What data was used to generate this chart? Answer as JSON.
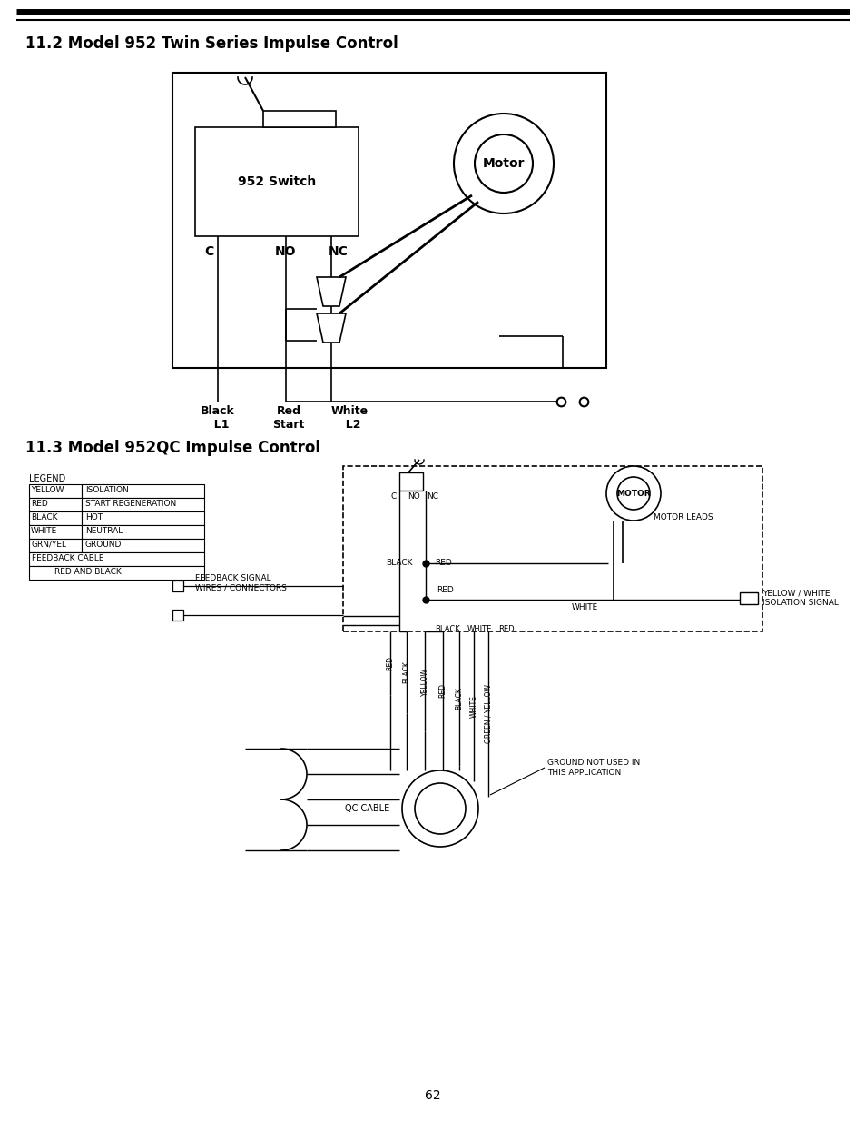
{
  "page_number": "62",
  "title1": "11.2 Model 952 Twin Series Impulse Control",
  "title2": "11.3 Model 952QC Impulse Control",
  "bg_color": "#ffffff",
  "text_color": "#000000",
  "legend_rows": [
    [
      "YELLOW",
      "ISOLATION"
    ],
    [
      "RED",
      "START REGENERATION"
    ],
    [
      "BLACK",
      "HOT"
    ],
    [
      "WHITE",
      "NEUTRAL"
    ],
    [
      "GRN/YEL",
      "GROUND"
    ],
    [
      "FEEDBACK CABLE",
      ""
    ],
    [
      "",
      "RED AND BLACK"
    ]
  ]
}
